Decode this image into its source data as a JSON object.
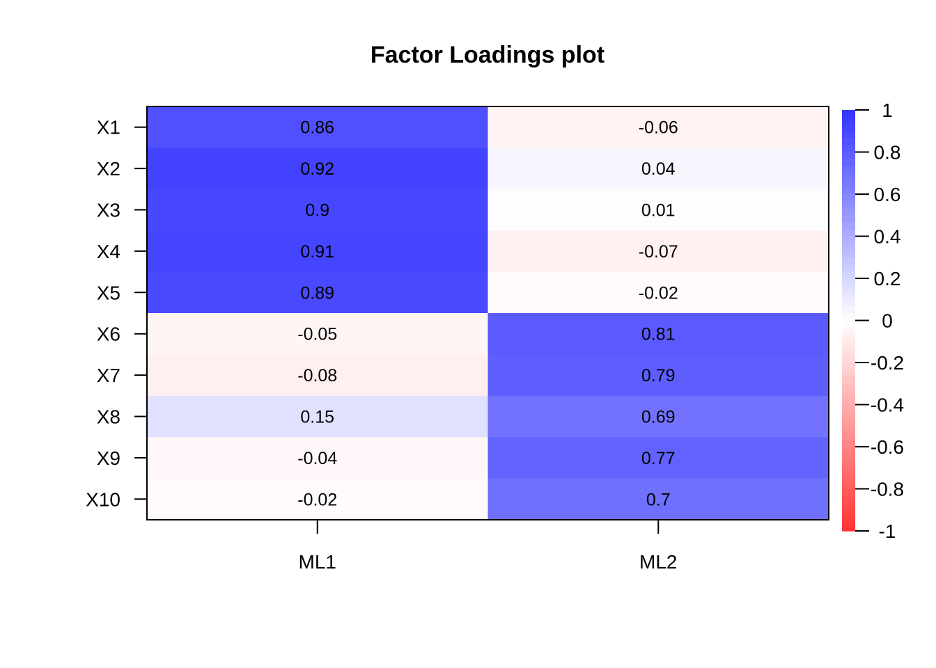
{
  "chart_data": {
    "type": "heatmap",
    "title": "Factor Loadings plot",
    "rows": [
      "X1",
      "X2",
      "X3",
      "X4",
      "X5",
      "X6",
      "X7",
      "X8",
      "X9",
      "X10"
    ],
    "columns": [
      "ML1",
      "ML2"
    ],
    "values": [
      [
        0.86,
        -0.06
      ],
      [
        0.92,
        0.04
      ],
      [
        0.9,
        0.01
      ],
      [
        0.91,
        -0.07
      ],
      [
        0.89,
        -0.02
      ],
      [
        -0.05,
        0.81
      ],
      [
        -0.08,
        0.79
      ],
      [
        0.15,
        0.69
      ],
      [
        -0.04,
        0.77
      ],
      [
        -0.02,
        0.7
      ]
    ],
    "value_labels": [
      [
        "0.86",
        "-0.06"
      ],
      [
        "0.92",
        "0.04"
      ],
      [
        "0.9",
        "0.01"
      ],
      [
        "0.91",
        "-0.07"
      ],
      [
        "0.89",
        "-0.02"
      ],
      [
        "-0.05",
        "0.81"
      ],
      [
        "-0.08",
        "0.79"
      ],
      [
        "0.15",
        "0.69"
      ],
      [
        "-0.04",
        "0.77"
      ],
      [
        "-0.02",
        "0.7"
      ]
    ],
    "colorbar": {
      "range": [
        -1,
        1
      ],
      "ticks": [
        "1",
        "0.8",
        "0.6",
        "0.4",
        "0.2",
        "0",
        "-0.2",
        "-0.4",
        "-0.6",
        "-0.8",
        "-1"
      ],
      "low_color": "#FF3333",
      "mid_color": "#FFFFFF",
      "high_color": "#3333FF",
      "placement": "right"
    }
  }
}
